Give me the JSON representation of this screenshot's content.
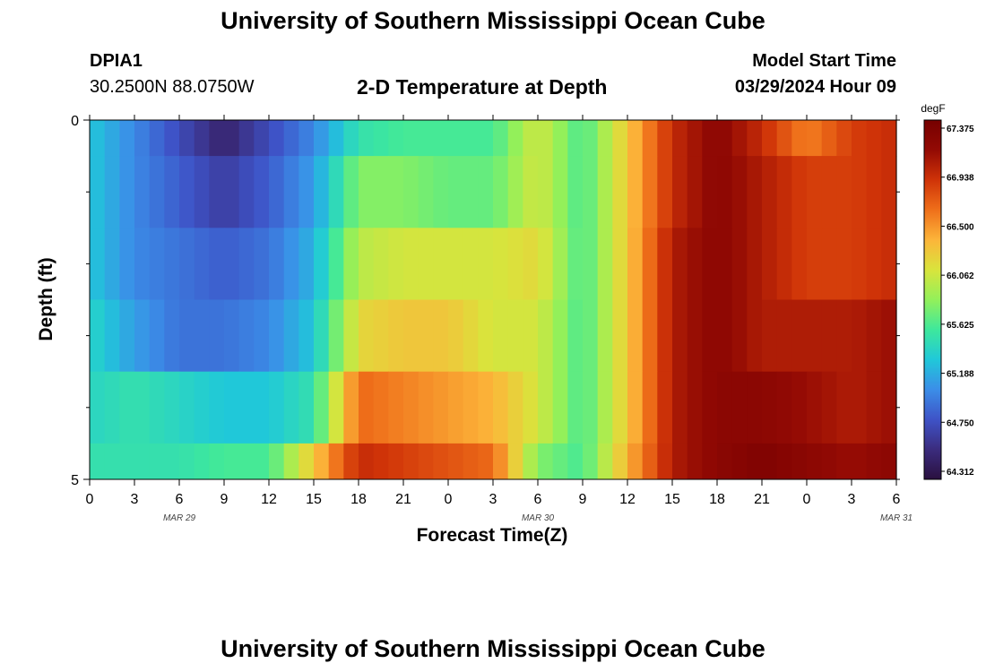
{
  "header": {
    "title": "University of Southern Mississippi Ocean Cube",
    "station_id": "DPIA1",
    "station_coords": "30.2500N  88.0750W",
    "subtitle": "2-D Temperature at Depth",
    "model_start_label": "Model Start Time",
    "model_start_value": "03/29/2024 Hour 09"
  },
  "footer": {
    "title": "University of Southern Mississippi Ocean Cube"
  },
  "chart_data": {
    "type": "heatmap",
    "title": "2-D Temperature at Depth",
    "xlabel": "Forecast Time(Z)",
    "ylabel": "Depth (ft)",
    "unit": "degF",
    "x_tick_labels": [
      "0",
      "3",
      "6",
      "9",
      "12",
      "15",
      "18",
      "21",
      "0",
      "3",
      "6",
      "9",
      "12",
      "15",
      "18",
      "21",
      "0",
      "3",
      "6"
    ],
    "date_labels": [
      {
        "label": "MAR 29",
        "hour_index": 6
      },
      {
        "label": "MAR 30",
        "hour_index": 30
      },
      {
        "label": "MAR 31",
        "hour_index": 54
      }
    ],
    "y_tick_labels": [
      "0",
      "5"
    ],
    "ylim": [
      0,
      5
    ],
    "xlim": [
      0,
      54
    ],
    "colorbar_ticks": [
      "67.375",
      "66.938",
      "66.500",
      "66.062",
      "65.625",
      "65.188",
      "64.750",
      "64.312"
    ],
    "color_range": [
      64.2,
      67.5
    ],
    "hours": [
      0,
      3,
      6,
      9,
      12,
      15,
      18,
      21,
      24,
      27,
      30,
      33,
      36,
      39,
      42,
      45,
      48,
      51,
      54
    ],
    "layers": [
      {
        "depth_range": [
          0,
          0.5
        ],
        "temperatures": [
          65.3,
          65.0,
          64.7,
          64.4,
          64.7,
          65.0,
          65.5,
          65.6,
          65.6,
          65.6,
          66.1,
          65.6,
          66.3,
          67.0,
          67.3,
          67.0,
          66.6,
          66.9,
          67.0
        ]
      },
      {
        "depth_range": [
          0.5,
          1.5
        ],
        "temperatures": [
          65.3,
          65.0,
          64.8,
          64.6,
          64.8,
          65.1,
          65.8,
          65.8,
          65.7,
          65.7,
          66.1,
          65.6,
          66.3,
          67.0,
          67.3,
          67.1,
          66.9,
          66.9,
          67.0
        ]
      },
      {
        "depth_range": [
          1.5,
          2.5
        ],
        "temperatures": [
          65.3,
          65.0,
          64.9,
          64.8,
          64.9,
          65.2,
          66.0,
          66.1,
          66.1,
          66.1,
          66.2,
          65.6,
          66.3,
          67.1,
          67.3,
          67.1,
          66.9,
          66.9,
          67.0
        ]
      },
      {
        "depth_range": [
          2.5,
          3.5
        ],
        "temperatures": [
          65.4,
          65.1,
          64.9,
          64.9,
          65.0,
          65.3,
          66.2,
          66.3,
          66.3,
          66.1,
          66.1,
          65.6,
          66.3,
          67.1,
          67.3,
          67.1,
          67.1,
          67.1,
          67.2
        ]
      },
      {
        "depth_range": [
          3.5,
          4.5
        ],
        "temperatures": [
          65.4,
          65.5,
          65.4,
          65.3,
          65.3,
          65.5,
          66.7,
          66.6,
          66.5,
          66.4,
          66.1,
          65.6,
          66.3,
          67.1,
          67.3,
          67.3,
          67.2,
          67.1,
          67.2
        ]
      },
      {
        "depth_range": [
          4.5,
          5.0
        ],
        "temperatures": [
          65.5,
          65.5,
          65.5,
          65.6,
          65.6,
          66.3,
          67.0,
          66.9,
          66.8,
          66.7,
          65.8,
          65.6,
          66.4,
          67.1,
          67.3,
          67.4,
          67.3,
          67.2,
          67.3
        ]
      }
    ]
  },
  "colors": {
    "colormap": [
      "#2a103f",
      "#3b2c7e",
      "#3e53c7",
      "#3b8ee8",
      "#20c8d9",
      "#3ee89c",
      "#93f05a",
      "#d9e43c",
      "#fcb53a",
      "#ef6f1a",
      "#cf3308",
      "#930a04",
      "#760000"
    ]
  }
}
